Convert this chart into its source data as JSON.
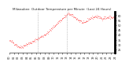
{
  "title": "Milwaukee  Outdoor Temperature per Minute  (Last 24 Hours)",
  "line_color": "#ff0000",
  "bg_color": "#ffffff",
  "plot_bg_color": "#ffffff",
  "vline_color": "#888888",
  "vline_positions": [
    0.27,
    0.54
  ],
  "ylim": [
    22,
    64
  ],
  "ytick_values": [
    25,
    30,
    35,
    40,
    45,
    50,
    55,
    60
  ],
  "xlim": [
    0,
    1
  ],
  "x_ctrl": [
    0,
    0.04,
    0.1,
    0.15,
    0.22,
    0.28,
    0.36,
    0.46,
    0.56,
    0.63,
    0.7,
    0.76,
    0.82,
    0.88,
    0.94,
    1.0
  ],
  "y_ctrl": [
    34,
    32,
    27,
    30,
    33,
    37,
    42,
    53,
    62,
    57,
    52,
    57,
    59,
    57,
    58,
    58
  ],
  "noise_seed": 42,
  "noise_std": 0.8,
  "num_points": 300,
  "title_fontsize": 3.0,
  "tick_labelsize": 2.5,
  "line_width": 0.5,
  "marker_size": 0.7
}
